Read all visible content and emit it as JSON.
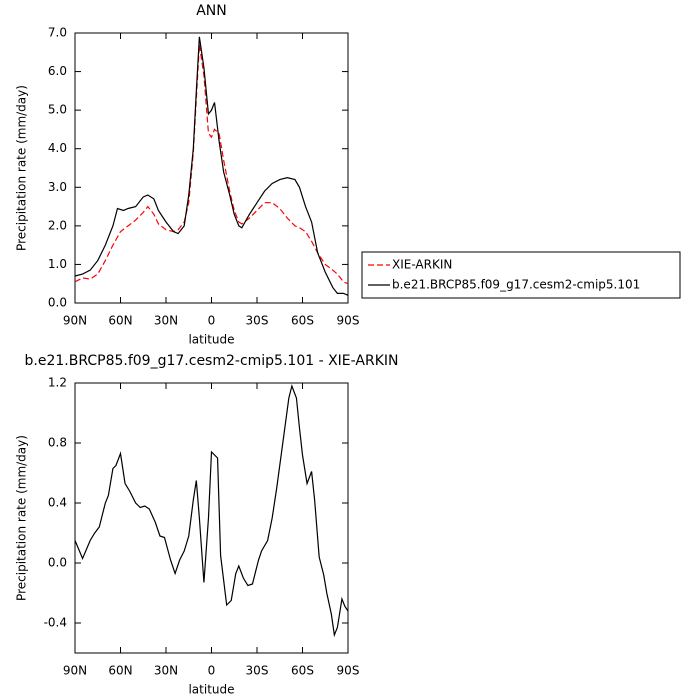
{
  "chart_data": [
    {
      "type": "line",
      "title": "ANN",
      "xlabel": "latitude",
      "ylabel": "Precipitation rate (mm/day)",
      "xlim": [
        90,
        -90
      ],
      "xticks": [
        {
          "value": 90,
          "label": "90N"
        },
        {
          "value": 60,
          "label": "60N"
        },
        {
          "value": 30,
          "label": "30N"
        },
        0,
        {
          "value": -30,
          "label": "30S"
        },
        {
          "value": -60,
          "label": "60S"
        },
        {
          "value": -90,
          "label": "90S"
        }
      ],
      "ylim": [
        0,
        7
      ],
      "yticks": [
        {
          "value": 0,
          "label": "0.0"
        },
        {
          "value": 1,
          "label": "1.0"
        },
        {
          "value": 2,
          "label": "2.0"
        },
        {
          "value": 3,
          "label": "3.0"
        },
        {
          "value": 4,
          "label": "4.0"
        },
        {
          "value": 5,
          "label": "5.0"
        },
        {
          "value": 6,
          "label": "6.0"
        },
        {
          "value": 7,
          "label": "7.0"
        }
      ],
      "legend": "right",
      "series": [
        {
          "name": "XIE-ARKIN",
          "color": "#ff0000",
          "dashed": true,
          "x": [
            90,
            85,
            80,
            75,
            70,
            65,
            60,
            55,
            50,
            45,
            42,
            38,
            35,
            30,
            25,
            22,
            18,
            15,
            12,
            10,
            8,
            5,
            2,
            0,
            -2,
            -5,
            -8,
            -12,
            -15,
            -18,
            -20,
            -25,
            -30,
            -35,
            -40,
            -45,
            -50,
            -55,
            -58,
            -62,
            -66,
            -70,
            -75,
            -80,
            -83,
            -87,
            -90
          ],
          "values": [
            0.55,
            0.65,
            0.62,
            0.75,
            1.1,
            1.5,
            1.85,
            2.0,
            2.15,
            2.35,
            2.5,
            2.3,
            2.05,
            1.9,
            1.85,
            1.9,
            2.1,
            2.6,
            3.9,
            5.3,
            6.7,
            5.9,
            4.4,
            4.3,
            4.5,
            4.4,
            3.7,
            2.9,
            2.4,
            2.1,
            2.05,
            2.2,
            2.4,
            2.6,
            2.6,
            2.45,
            2.2,
            2.0,
            1.95,
            1.85,
            1.6,
            1.3,
            1.0,
            0.85,
            0.75,
            0.55,
            0.5
          ]
        },
        {
          "name": "b.e21.BRCP85.f09_g17.cesm2-cmip5.101",
          "color": "#000000",
          "dashed": false,
          "x": [
            90,
            85,
            80,
            75,
            70,
            65,
            62,
            58,
            55,
            50,
            45,
            42,
            38,
            35,
            30,
            25,
            22,
            18,
            15,
            12,
            10,
            8,
            5,
            2,
            0,
            -2,
            -5,
            -8,
            -12,
            -15,
            -18,
            -20,
            -25,
            -30,
            -35,
            -40,
            -45,
            -50,
            -55,
            -58,
            -62,
            -66,
            -70,
            -75,
            -80,
            -83,
            -87,
            -90
          ],
          "values": [
            0.7,
            0.75,
            0.85,
            1.1,
            1.5,
            2.0,
            2.45,
            2.4,
            2.45,
            2.5,
            2.75,
            2.8,
            2.7,
            2.4,
            2.1,
            1.85,
            1.8,
            2.0,
            2.8,
            4.0,
            5.5,
            6.9,
            6.1,
            4.9,
            5.0,
            5.2,
            4.2,
            3.4,
            2.8,
            2.3,
            2.0,
            1.95,
            2.3,
            2.6,
            2.9,
            3.1,
            3.2,
            3.25,
            3.2,
            3.0,
            2.5,
            2.1,
            1.3,
            0.8,
            0.4,
            0.25,
            0.25,
            0.2
          ]
        }
      ]
    },
    {
      "type": "line",
      "title": "b.e21.BRCP85.f09_g17.cesm2-cmip5.101 - XIE-ARKIN",
      "xlabel": "latitude",
      "ylabel": "Precipitation rate (mm/day)",
      "xlim": [
        90,
        -90
      ],
      "xticks": [
        {
          "value": 90,
          "label": "90N"
        },
        {
          "value": 60,
          "label": "60N"
        },
        {
          "value": 30,
          "label": "30N"
        },
        0,
        {
          "value": -30,
          "label": "30S"
        },
        {
          "value": -60,
          "label": "60S"
        },
        {
          "value": -90,
          "label": "90S"
        }
      ],
      "ylim": [
        -0.6,
        1.2
      ],
      "yticks": [
        -0.4,
        {
          "value": 0,
          "label": "0.0"
        },
        0.4,
        0.8,
        1.2
      ],
      "series": [
        {
          "color": "#000000",
          "dashed": false,
          "x": [
            90,
            85,
            80,
            77,
            74,
            70,
            68,
            65,
            63,
            60,
            57,
            54,
            50,
            47,
            44,
            41,
            37,
            34,
            31,
            27,
            24,
            21,
            18,
            15,
            12,
            10,
            8,
            5,
            2,
            0,
            -4,
            -6,
            -10,
            -13,
            -16,
            -18,
            -21,
            -24,
            -27,
            -31,
            -33,
            -37,
            -40,
            -43,
            -45,
            -49,
            -51,
            -53,
            -56,
            -58,
            -60,
            -63,
            -66,
            -68,
            -71,
            -74,
            -76,
            -79,
            -81,
            -83,
            -86,
            -88,
            -90
          ],
          "values": [
            0.15,
            0.03,
            0.15,
            0.2,
            0.24,
            0.4,
            0.45,
            0.63,
            0.65,
            0.73,
            0.53,
            0.48,
            0.4,
            0.37,
            0.38,
            0.36,
            0.27,
            0.18,
            0.17,
            0.02,
            -0.07,
            0.02,
            0.08,
            0.18,
            0.42,
            0.55,
            0.3,
            -0.13,
            0.3,
            0.74,
            0.7,
            0.05,
            -0.28,
            -0.25,
            -0.07,
            -0.02,
            -0.1,
            -0.15,
            -0.14,
            0.02,
            0.08,
            0.15,
            0.3,
            0.5,
            0.65,
            0.95,
            1.1,
            1.18,
            1.1,
            0.9,
            0.72,
            0.53,
            0.61,
            0.42,
            0.04,
            -0.08,
            -0.2,
            -0.34,
            -0.48,
            -0.43,
            -0.24,
            -0.29,
            -0.32
          ]
        }
      ]
    }
  ]
}
